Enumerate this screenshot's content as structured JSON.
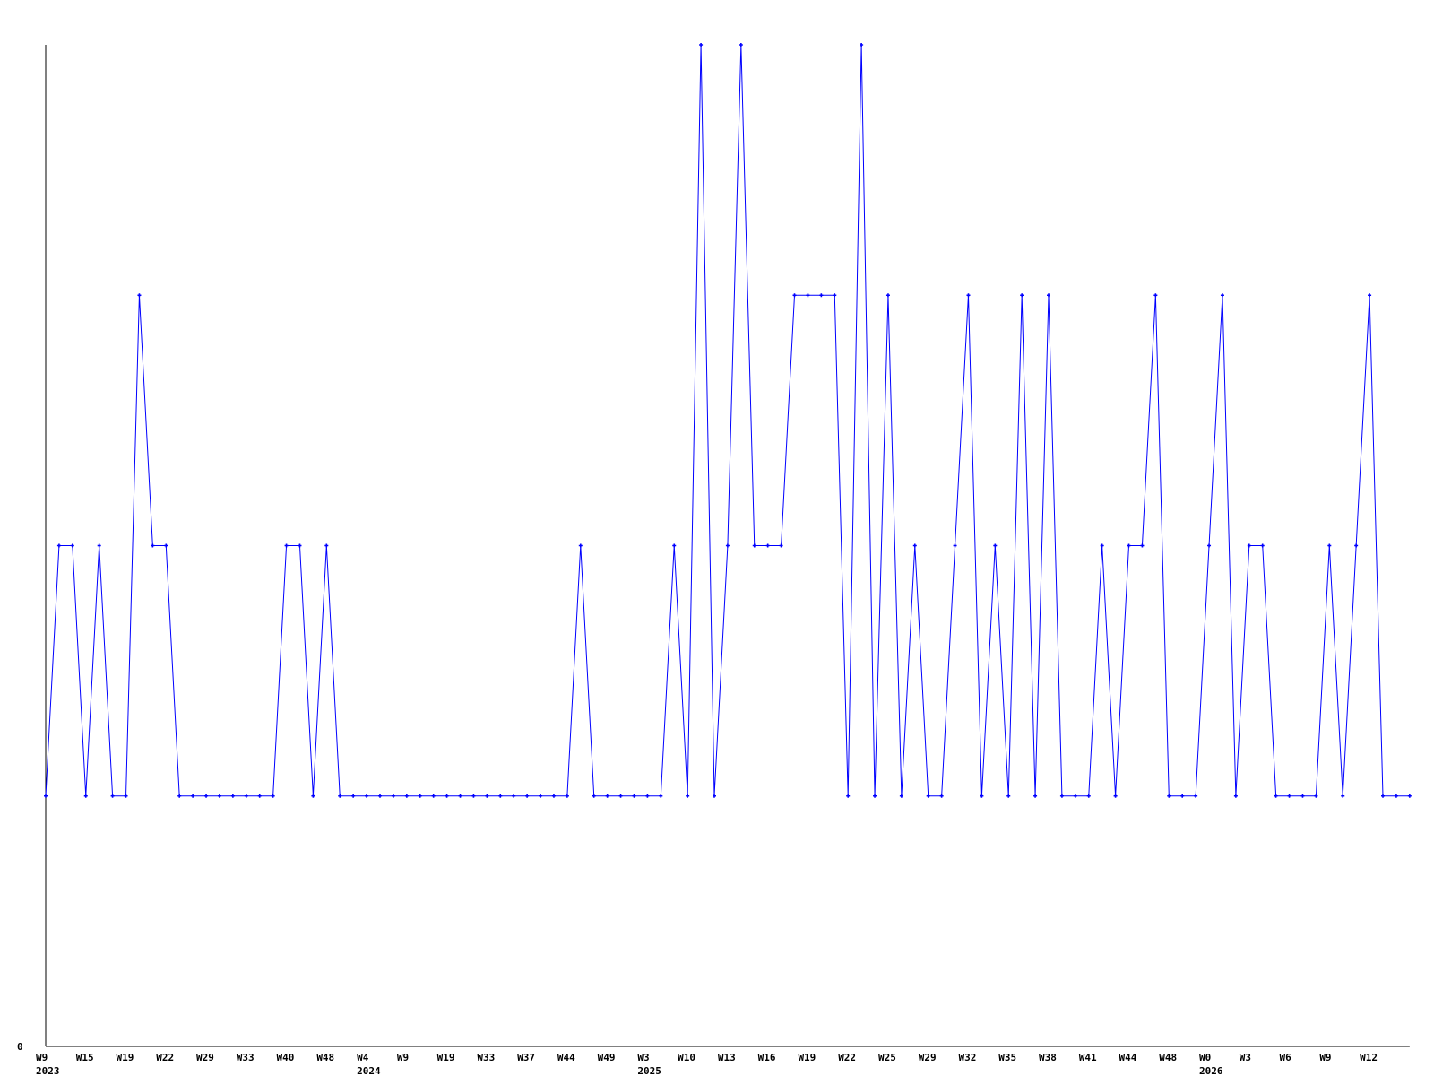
{
  "chart_data": {
    "type": "line",
    "title": "",
    "xlabel": "",
    "ylabel": "",
    "ylim": [
      0,
      4
    ],
    "y_tick_labels": [
      "0"
    ],
    "grid": false,
    "line_color": "#0000ff",
    "axis_color": "#000000",
    "markers": true,
    "values": [
      1,
      2,
      2,
      1,
      2,
      1,
      1,
      3,
      2,
      2,
      1,
      1,
      1,
      1,
      1,
      1,
      1,
      1,
      2,
      2,
      1,
      2,
      1,
      1,
      1,
      1,
      1,
      1,
      1,
      1,
      1,
      1,
      1,
      1,
      1,
      1,
      1,
      1,
      1,
      1,
      2,
      1,
      1,
      1,
      1,
      1,
      1,
      2,
      1,
      4,
      1,
      2,
      4,
      2,
      2,
      2,
      3,
      3,
      3,
      3,
      1,
      4,
      1,
      3,
      1,
      2,
      1,
      1,
      2,
      3,
      1,
      2,
      1,
      3,
      1,
      3,
      1,
      1,
      1,
      2,
      1,
      2,
      2,
      3,
      1,
      1,
      1,
      2,
      3,
      1,
      2,
      2,
      1,
      1,
      1,
      1,
      2,
      1,
      2,
      3,
      1,
      1,
      1
    ],
    "x_tick_labels": [
      "W9",
      "W15",
      "W19",
      "W22",
      "W29",
      "W33",
      "W40",
      "W48",
      "W4",
      "W9",
      "W19",
      "W33",
      "W37",
      "W44",
      "W49",
      "W3",
      "W10",
      "W13",
      "W16",
      "W19",
      "W22",
      "W25",
      "W29",
      "W32",
      "W35",
      "W38",
      "W41",
      "W44",
      "W48",
      "W0",
      "W3",
      "W6",
      "W9",
      "W12"
    ],
    "x_tick_every": 3,
    "year_labels": [
      {
        "label": "2023",
        "tick": "W9"
      },
      {
        "label": "2024",
        "tick": "W4"
      },
      {
        "label": "2025",
        "tick": "W3"
      },
      {
        "label": "2026",
        "tick": "W0"
      }
    ],
    "year_tick_index": [
      0,
      8,
      15,
      29
    ]
  }
}
